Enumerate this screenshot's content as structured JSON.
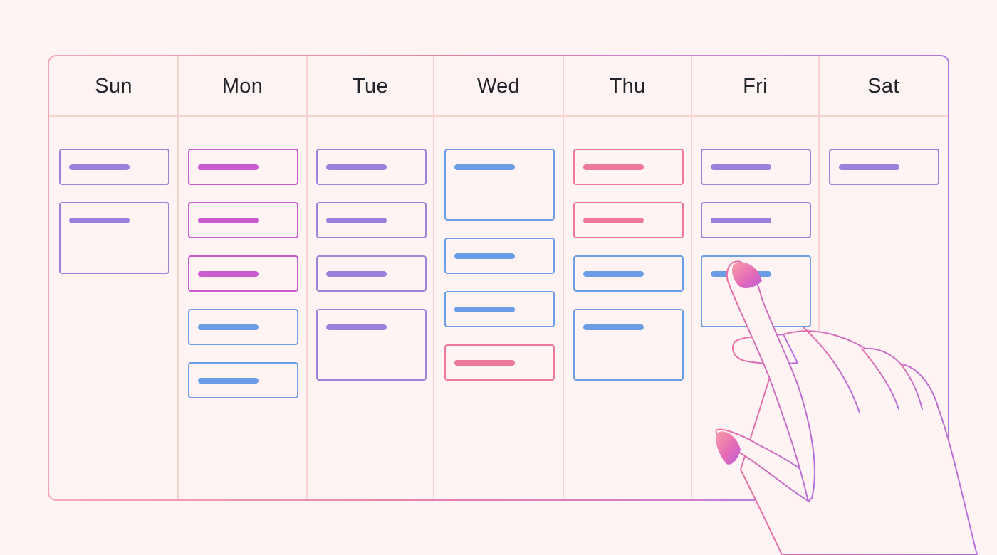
{
  "calendar": {
    "days": [
      {
        "label": "Sun",
        "events": [
          {
            "color": "purple",
            "size": "small"
          },
          {
            "color": "purple",
            "size": "large"
          }
        ]
      },
      {
        "label": "Mon",
        "events": [
          {
            "color": "magenta",
            "size": "small"
          },
          {
            "color": "magenta",
            "size": "small"
          },
          {
            "color": "magenta",
            "size": "small"
          },
          {
            "color": "blue",
            "size": "small"
          },
          {
            "color": "blue",
            "size": "small"
          }
        ]
      },
      {
        "label": "Tue",
        "events": [
          {
            "color": "purple",
            "size": "small"
          },
          {
            "color": "purple",
            "size": "small"
          },
          {
            "color": "purple",
            "size": "small"
          },
          {
            "color": "purple",
            "size": "large"
          }
        ]
      },
      {
        "label": "Wed",
        "events": [
          {
            "color": "blue",
            "size": "large"
          },
          {
            "color": "blue",
            "size": "small"
          },
          {
            "color": "blue",
            "size": "small"
          },
          {
            "color": "pink",
            "size": "small"
          }
        ]
      },
      {
        "label": "Thu",
        "events": [
          {
            "color": "pink",
            "size": "small"
          },
          {
            "color": "pink",
            "size": "small"
          },
          {
            "color": "blue",
            "size": "small"
          },
          {
            "color": "blue",
            "size": "large"
          }
        ]
      },
      {
        "label": "Fri",
        "events": [
          {
            "color": "purple",
            "size": "small"
          },
          {
            "color": "purple",
            "size": "small"
          },
          {
            "color": "blue",
            "size": "large"
          }
        ]
      },
      {
        "label": "Sat",
        "events": [
          {
            "color": "purple",
            "size": "small"
          }
        ]
      }
    ]
  },
  "colors": {
    "purple": "#9a7fdc",
    "magenta": "#cb5ccf",
    "blue": "#6a9de6",
    "pink": "#ee789c",
    "frame_start": "#f5a9b5",
    "frame_end": "#a978db",
    "background": "#fff4f3"
  },
  "illustration": {
    "icon": "pointing-hand-icon"
  }
}
